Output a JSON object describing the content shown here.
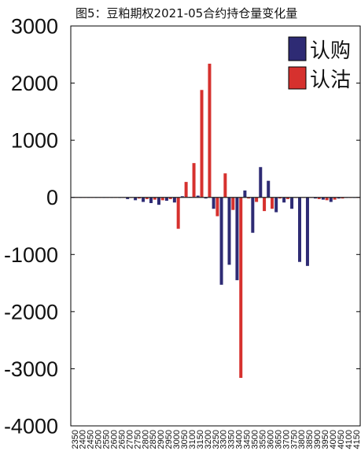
{
  "chart_data": {
    "type": "bar",
    "title": "图5：豆粕期权2021-05合约持仓量变化量",
    "xlabel": "",
    "ylabel": "",
    "ylim": [
      -4000,
      3000
    ],
    "y_tick_labels": [
      "3000",
      "2000",
      "1000",
      "0",
      "-1000",
      "-2000",
      "-3000",
      "-4000"
    ],
    "grid": false,
    "legend_position": "top-right",
    "categories": [
      "2350",
      "2400",
      "2450",
      "2500",
      "2550",
      "2600",
      "2650",
      "2700",
      "2750",
      "2800",
      "2850",
      "2900",
      "2950",
      "3000",
      "3050",
      "3100",
      "3150",
      "3200",
      "3250",
      "3300",
      "3350",
      "3400",
      "3450",
      "3500",
      "3550",
      "3600",
      "3650",
      "3700",
      "3750",
      "3800",
      "3850",
      "3900",
      "3950",
      "4000",
      "4050",
      "4100",
      "4150"
    ],
    "series": [
      {
        "name": "认购",
        "color": "#2e2b74",
        "values": [
          -5,
          -5,
          -5,
          -5,
          -5,
          -5,
          -10,
          -30,
          -50,
          -80,
          -100,
          -130,
          -60,
          -90,
          20,
          10,
          30,
          -20,
          -200,
          -1530,
          -1180,
          -1450,
          120,
          -620,
          530,
          290,
          -260,
          -90,
          -200,
          -1130,
          -1200,
          -20,
          -40,
          -80,
          -20,
          -10,
          -10
        ]
      },
      {
        "name": "认沽",
        "color": "#d6312e",
        "values": [
          -5,
          -5,
          -5,
          -5,
          -5,
          -5,
          -5,
          -10,
          -20,
          -30,
          -40,
          -50,
          -30,
          -550,
          270,
          600,
          1880,
          2340,
          -330,
          420,
          -220,
          -3160,
          -20,
          -80,
          -240,
          -200,
          -20,
          -30,
          -10,
          -10,
          -10,
          -30,
          -50,
          -40,
          -20,
          -10,
          -10
        ]
      }
    ]
  }
}
